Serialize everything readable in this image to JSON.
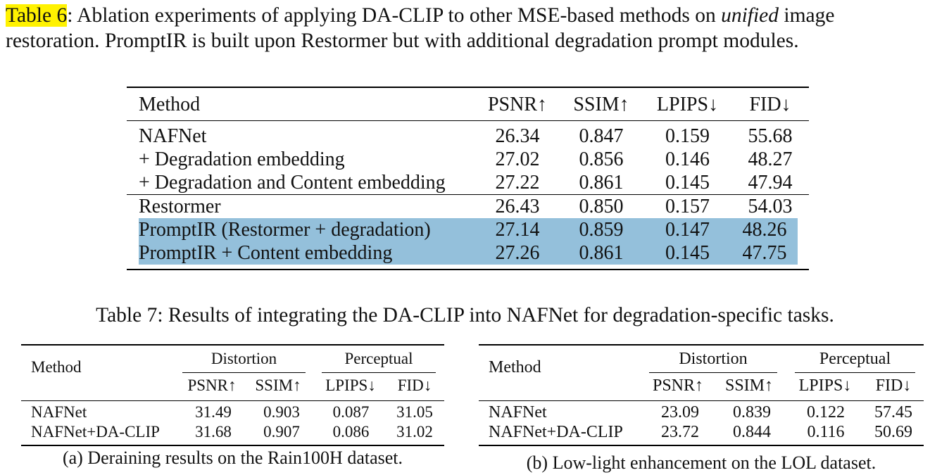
{
  "table6": {
    "label": "Table 6",
    "caption_part1": ": Ablation experiments of applying DA-CLIP to other MSE-based methods on ",
    "caption_italic": "unified",
    "caption_part2": " image restoration. PromptIR is built upon Restormer but with additional degradation prompt modules.",
    "header": [
      "Method",
      "PSNR↑",
      "SSIM↑",
      "LPIPS↓",
      "FID↓"
    ],
    "group1": [
      [
        "NAFNet",
        "26.34",
        "0.847",
        "0.159",
        "55.68"
      ],
      [
        "+ Degradation embedding",
        "27.02",
        "0.856",
        "0.146",
        "48.27"
      ],
      [
        "+ Degradation and Content embedding",
        "27.22",
        "0.861",
        "0.145",
        "47.94"
      ]
    ],
    "group2": [
      [
        "Restormer",
        "26.43",
        "0.850",
        "0.157",
        "54.03"
      ],
      [
        "PromptIR (Restormer + degradation)",
        "27.14",
        "0.859",
        "0.147",
        "48.26"
      ],
      [
        "PromptIR + Content embedding",
        "27.26",
        "0.861",
        "0.145",
        "47.75"
      ]
    ],
    "highlight_color": "#94c0db"
  },
  "table7": {
    "caption": "Table 7: Results of integrating the DA-CLIP into NAFNet for degradation-specific tasks.",
    "sub_a": {
      "method_header": "Method",
      "group_distortion": "Distortion",
      "group_perceptual": "Perceptual",
      "columns": [
        "PSNR↑",
        "SSIM↑",
        "LPIPS↓",
        "FID↓"
      ],
      "rows": [
        [
          "NAFNet",
          "31.49",
          "0.903",
          "0.087",
          "31.05"
        ],
        [
          "NAFNet+DA-CLIP",
          "31.68",
          "0.907",
          "0.086",
          "31.02"
        ]
      ],
      "caption": "(a) Deraining results on the Rain100H dataset."
    },
    "sub_b": {
      "method_header": "Method",
      "group_distortion": "Distortion",
      "group_perceptual": "Perceptual",
      "columns": [
        "PSNR↑",
        "SSIM↑",
        "LPIPS↓",
        "FID↓"
      ],
      "rows": [
        [
          "NAFNet",
          "23.09",
          "0.839",
          "0.122",
          "57.45"
        ],
        [
          "NAFNet+DA-CLIP",
          "23.72",
          "0.844",
          "0.116",
          "50.69"
        ]
      ],
      "caption": "(b) Low-light enhancement on the LOL dataset."
    }
  }
}
